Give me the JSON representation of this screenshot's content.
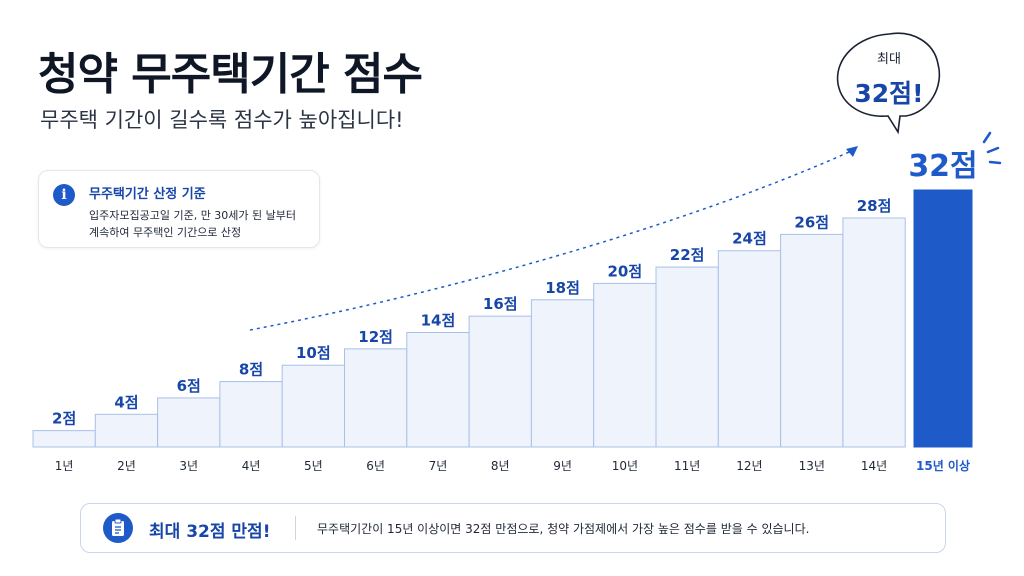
{
  "header": {
    "title": "청약 무주택기간 점수",
    "subtitle": "무주택 기간이 길수록 점수가 높아집니다!"
  },
  "info": {
    "icon": "info-icon",
    "title": "무주택기간 산정 기준",
    "text": "입주자모집공고일 기준, 만 30세가 된 날부터 계속하여 무주택인 기간으로 산정"
  },
  "bubble": {
    "small": "최대",
    "big": "32점!"
  },
  "bottom": {
    "icon": "clipboard-icon",
    "title": "최대 32점 만점!",
    "text": "무주택기간이 15년 이상이면 32점 만점으로, 청약 가점제에서 가장 높은 점수를 받을 수 있습니다."
  },
  "colors": {
    "accent": "#1f5ac9",
    "bar_fill": "#eef3fc",
    "bar_stroke": "#a9c0e8",
    "label": "#1746a8"
  },
  "chart_data": {
    "type": "bar",
    "categories": [
      "1년",
      "2년",
      "3년",
      "4년",
      "5년",
      "6년",
      "7년",
      "8년",
      "9년",
      "10년",
      "11년",
      "12년",
      "13년",
      "14년",
      "15년 이상"
    ],
    "values": [
      2,
      4,
      6,
      8,
      10,
      12,
      14,
      16,
      18,
      20,
      22,
      24,
      26,
      28,
      32
    ],
    "value_labels": [
      "2점",
      "4점",
      "6점",
      "8점",
      "10점",
      "12점",
      "14점",
      "16점",
      "18점",
      "20점",
      "22점",
      "24점",
      "26점",
      "28점",
      "32점"
    ],
    "highlight_index": 14,
    "ylim": [
      0,
      32
    ]
  }
}
